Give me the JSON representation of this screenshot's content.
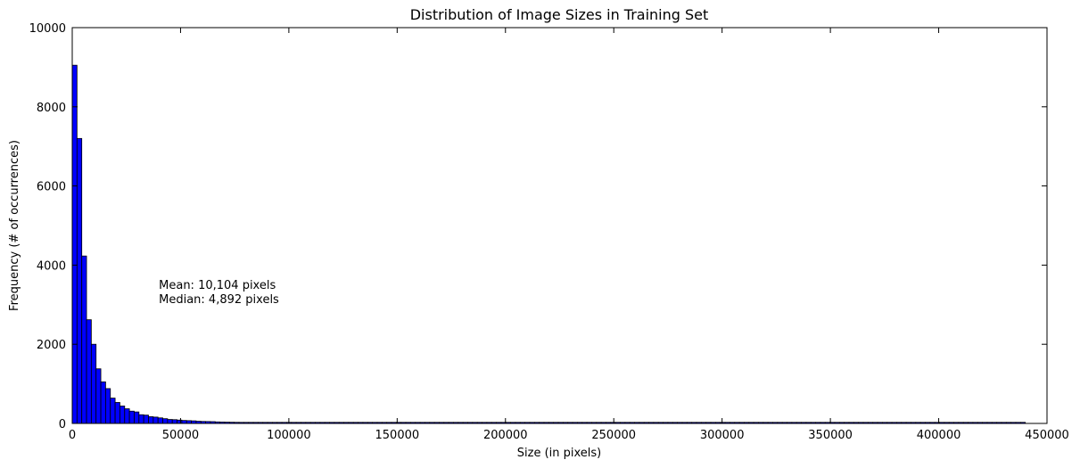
{
  "chart_data": {
    "type": "bar",
    "title": "Distribution of Image Sizes in Training Set",
    "xlabel": "Size (in pixels)",
    "ylabel": "Frequency (# of occurrences)",
    "xlim": [
      0,
      450000
    ],
    "ylim": [
      0,
      10000
    ],
    "x_ticks": [
      0,
      50000,
      100000,
      150000,
      200000,
      250000,
      300000,
      350000,
      400000,
      450000
    ],
    "x_tick_labels": [
      "0",
      "50000",
      "100000",
      "150000",
      "200000",
      "250000",
      "300000",
      "350000",
      "400000",
      "450000"
    ],
    "y_ticks": [
      0,
      2000,
      4000,
      6000,
      8000,
      10000
    ],
    "y_tick_labels": [
      "0",
      "2000",
      "4000",
      "6000",
      "8000",
      "10000"
    ],
    "grid": false,
    "bar_color": "#0000ff",
    "bin_width": 2200,
    "bin_starts": [
      0,
      2200,
      4400,
      6600,
      8800,
      11000,
      13200,
      15400,
      17600,
      19800,
      22000,
      24200,
      26400,
      28600,
      30800,
      33000,
      35200,
      37400,
      39600,
      41800,
      44000,
      46200,
      48400,
      50600,
      52800,
      55000,
      57200,
      59400,
      61600,
      63800,
      66000,
      68200,
      70400,
      72600,
      74800,
      77000,
      79200,
      81400,
      83600,
      85800,
      88000,
      90200,
      92400,
      94600,
      96800,
      99000,
      101200,
      103400,
      105600,
      107800,
      110000,
      112200,
      114400,
      116600,
      118800,
      121000,
      123200,
      125400,
      127600,
      129800,
      132000,
      134200,
      136400,
      138600,
      140800,
      143000,
      145200,
      147400,
      149600,
      151800,
      154000,
      156200,
      158400,
      160600,
      162800,
      165000,
      167200,
      169400,
      171600,
      173800,
      176000,
      178200,
      180400,
      182600,
      184800,
      187000,
      189200,
      191400,
      193600,
      195800,
      198000,
      200200,
      202400,
      204600,
      206800,
      209000,
      211200,
      213400,
      215600,
      217800,
      220000,
      222200,
      224400,
      226600,
      228800,
      231000,
      233200,
      235400,
      237600,
      239800,
      242000,
      244200,
      246400,
      248600,
      250800,
      253000,
      255200,
      257400,
      259600,
      261800,
      264000,
      266200,
      268400,
      270600,
      272800,
      275000,
      277200,
      279400,
      281600,
      283800,
      286000,
      288200,
      290400,
      292600,
      294800,
      297000,
      299200,
      301400,
      303600,
      305800,
      308000,
      310200,
      312400,
      314600,
      316800,
      319000,
      321200,
      323400,
      325600,
      327800,
      330000,
      332200,
      334400,
      336600,
      338800,
      341000,
      343200,
      345400,
      347600,
      349800,
      352000,
      354200,
      356400,
      358600,
      360800,
      363000,
      365200,
      367400,
      369600,
      371800,
      374000,
      376200,
      378400,
      380600,
      382800,
      385000,
      387200,
      389400,
      391600,
      393800,
      396000,
      398200,
      400400,
      402600,
      404800,
      407000,
      409200,
      411400,
      413600,
      415800,
      418000,
      420200,
      422400,
      424600,
      426800,
      429000,
      431200,
      433400,
      435600,
      437800
    ],
    "values": [
      9050,
      7200,
      4230,
      2620,
      2000,
      1380,
      1050,
      880,
      640,
      530,
      440,
      370,
      310,
      290,
      220,
      210,
      170,
      160,
      140,
      120,
      100,
      95,
      85,
      75,
      70,
      65,
      55,
      50,
      48,
      45,
      38,
      35,
      32,
      30,
      28,
      26,
      24,
      22,
      20,
      20,
      18,
      17,
      16,
      15,
      14,
      13,
      12,
      12,
      11,
      10,
      10,
      9,
      9,
      8,
      8,
      7,
      7,
      6,
      6,
      5,
      5,
      5,
      4,
      4,
      4,
      3,
      3,
      3,
      3,
      2,
      2,
      2,
      2,
      2,
      2,
      1,
      1,
      1,
      1,
      1,
      1,
      1,
      1,
      1,
      1,
      1,
      1,
      1,
      1,
      1,
      1,
      1,
      1,
      1,
      1,
      1,
      1,
      1,
      1,
      1,
      1,
      1,
      1,
      1,
      1,
      1,
      1,
      1,
      1,
      1,
      1,
      1,
      1,
      1,
      1,
      1,
      1,
      1,
      1,
      1,
      1,
      1,
      1,
      1,
      1,
      1,
      1,
      1,
      1,
      1,
      1,
      1,
      1,
      1,
      1,
      1,
      1,
      1,
      1,
      1,
      1,
      1,
      1,
      1,
      1,
      1,
      1,
      1,
      1,
      1,
      1,
      1,
      1,
      1,
      1,
      1,
      1,
      1,
      1,
      1,
      1,
      1,
      1,
      1,
      1,
      1,
      1,
      1,
      1,
      1,
      1,
      1,
      1,
      1,
      1,
      1,
      1,
      1,
      1,
      1,
      1,
      1,
      1,
      1,
      1,
      1,
      1,
      1,
      1,
      1,
      1,
      1,
      1,
      1,
      1,
      1,
      1,
      1,
      1,
      1
    ],
    "annotation": {
      "line1": "Mean: 10,104 pixels",
      "line2": "Median: 4,892 pixels",
      "x": 40000,
      "y": 3400
    }
  }
}
